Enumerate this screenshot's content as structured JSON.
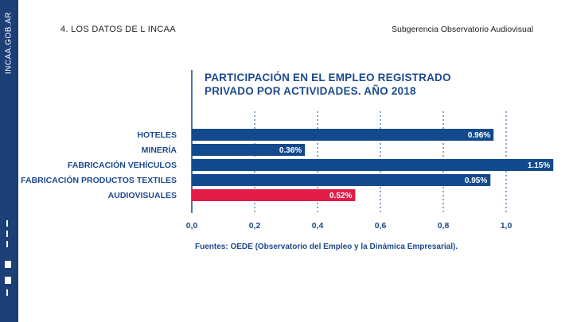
{
  "sidebar": {
    "title": "INCAA.GOB.AR"
  },
  "header": {
    "section": "4. LOS DATOS DE L INCAA",
    "org": "Subgerencia Observatorio Audiovisual"
  },
  "colors": {
    "bar": "#134a8e",
    "highlight": "#e11d48",
    "sidebar": "#1d3f78"
  },
  "chart_data": {
    "type": "bar",
    "orientation": "horizontal",
    "title_lines": [
      "PARTICIPACIÓN EN EL EMPLEO REGISTRADO",
      "PRIVADO POR ACTIVIDADES. AÑO 2018"
    ],
    "categories": [
      "HOTELES",
      "MINERÍA",
      "FABRICACIÓN VEHÍCULOS",
      "FABRICACIÓN PRODUCTOS TEXTILES",
      "AUDIOVISUALES"
    ],
    "values": [
      0.96,
      0.36,
      1.15,
      0.95,
      0.52
    ],
    "value_labels": [
      "0.96%",
      "0.36%",
      "1.15%",
      "0.95%",
      "0.52%"
    ],
    "highlight_index": 4,
    "xlim": [
      0,
      1.15
    ],
    "xticks": [
      0.0,
      0.2,
      0.4,
      0.6,
      0.8,
      1.0
    ],
    "xtick_labels": [
      "0,0",
      "0,2",
      "0,4",
      "0,6",
      "0,8",
      "1,0"
    ],
    "grid": "vertical-dashed",
    "source": "Fuentes: OEDE (Observatorio del Empleo y la Dinámica Empresarial)."
  }
}
